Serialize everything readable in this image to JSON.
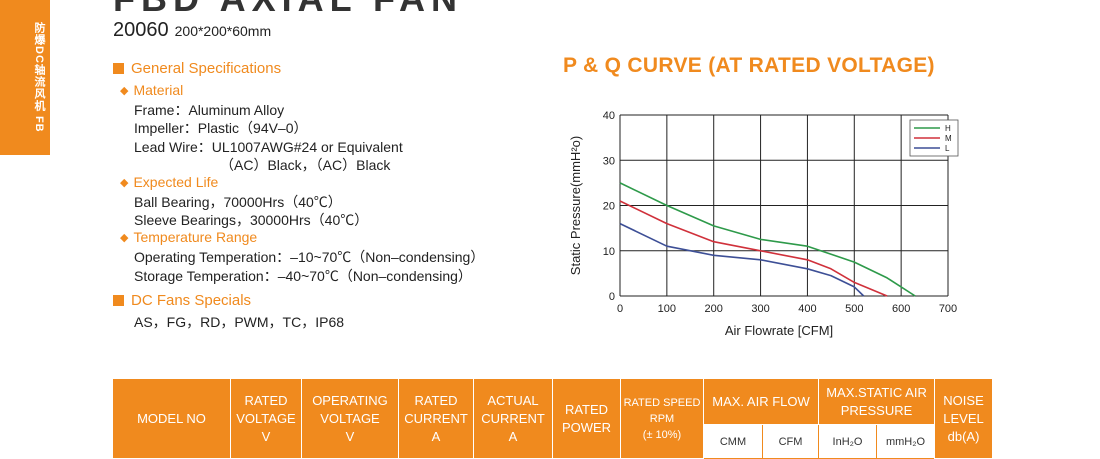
{
  "sidebar": {
    "text": "防爆DC轴流风机 FB"
  },
  "header": {
    "title": "FBD AXIAL FAN",
    "model": "20060",
    "dimensions": "200*200*60mm"
  },
  "general_specs": {
    "heading": "General Specifications",
    "material": {
      "heading": "Material",
      "frame": "Frame：Aluminum Alloy",
      "impeller": "Impeller：Plastic（94V–0）",
      "lead_wire": "Lead Wire：UL1007AWG#24 or Equivalent",
      "lead_wire_2": "（AC）Black，（AC）Black"
    },
    "expected_life": {
      "heading": "Expected Life",
      "ball": "Ball Bearing，70000Hrs（40℃）",
      "sleeve": "Sleeve Bearings，30000Hrs（40℃）"
    },
    "temperature": {
      "heading": "Temperature Range",
      "operating": "Operating Temperation：–10~70℃（Non–condensing）",
      "storage": "Storage Temperation：–40~70℃（Non–condensing）"
    },
    "dc_specials": {
      "heading": "DC Fans Specials",
      "list": "AS，FG，RD，PWM，TC，IP68"
    }
  },
  "chart": {
    "title": "P & Q CURVE (AT RATED VOLTAGE)",
    "ylabel": "Static Pressure(mmH²o)",
    "xlabel": "Air  Flowrate   [CFM]",
    "x_ticks": [
      "0",
      "100",
      "200",
      "300",
      "400",
      "500",
      "600",
      "700"
    ],
    "y_ticks": [
      "0",
      "10",
      "20",
      "30",
      "40"
    ]
  },
  "chart_data": {
    "type": "line",
    "xlabel": "Air  Flowrate   [CFM]",
    "ylabel": "Static Pressure(mmH²o)",
    "xlim": [
      0,
      700
    ],
    "ylim": [
      0,
      40
    ],
    "grid": true,
    "legend_position": "top-right",
    "series": [
      {
        "name": "H",
        "color": "#2e9a4a",
        "x": [
          0,
          100,
          200,
          300,
          400,
          500,
          570,
          630
        ],
        "y": [
          25,
          20,
          15.5,
          12.5,
          11,
          7.5,
          4,
          0
        ]
      },
      {
        "name": "M",
        "color": "#d0313b",
        "x": [
          0,
          100,
          200,
          300,
          400,
          450,
          500,
          570
        ],
        "y": [
          21,
          16,
          12,
          10,
          8,
          6,
          3,
          0
        ]
      },
      {
        "name": "L",
        "color": "#3d4f96",
        "x": [
          0,
          100,
          200,
          300,
          400,
          450,
          500,
          520
        ],
        "y": [
          16,
          11,
          9,
          8,
          6,
          4.5,
          2,
          0
        ]
      }
    ]
  },
  "table": {
    "headers": {
      "model_no": "MODEL NO",
      "rated_voltage": [
        "RATED",
        "VOLTAGE",
        "V"
      ],
      "operating_voltage": [
        "OPERATING",
        "VOLTAGE",
        "V"
      ],
      "rated_current": [
        "RATED",
        "CURRENT",
        "A"
      ],
      "actual_current": [
        "ACTUAL",
        "CURRENT",
        "A"
      ],
      "rated_power": [
        "RATED",
        "POWER"
      ],
      "rated_speed": [
        "RATED SPEED",
        "RPM",
        "(± 10%)"
      ],
      "max_air_flow": "MAX. AIR FLOW",
      "max_static": [
        "MAX.STATIC AIR",
        "PRESSURE"
      ],
      "noise": [
        "NOISE",
        "LEVEL",
        "db(A)"
      ]
    },
    "sub_headers": {
      "cmm": "CMM",
      "cfm": "CFM",
      "inh2o": "InH₂O",
      "mmh2o": "mmH₂O"
    }
  }
}
